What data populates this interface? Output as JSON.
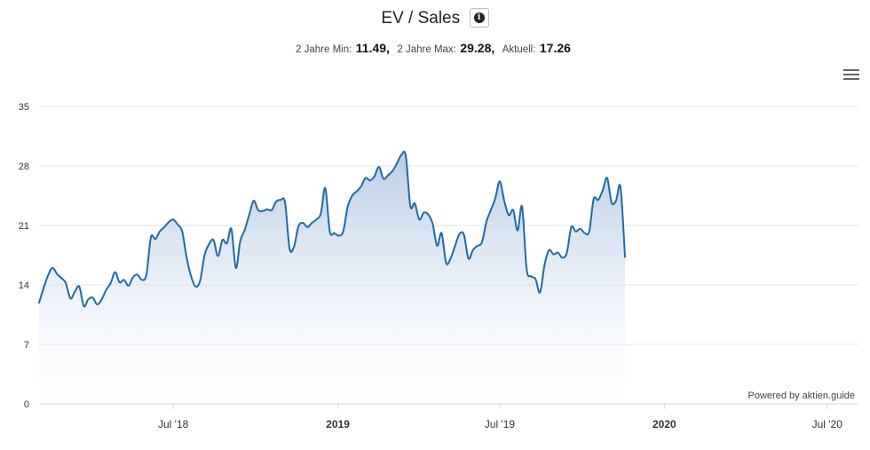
{
  "header": {
    "title": "EV / Sales",
    "info_icon": "info-circle-icon",
    "menu_icon": "hamburger-menu-icon"
  },
  "stats": {
    "min_label": "2 Jahre Min:",
    "min_value": "11.49,",
    "max_label": "2 Jahre Max:",
    "max_value": "29.28,",
    "current_label": "Aktuell:",
    "current_value": "17.26"
  },
  "credit": "Powered by aktien.guide",
  "colors": {
    "line": "#1f6aa5",
    "fill_top": "#b4c9e5",
    "grid": "#e3e3e3"
  },
  "chart_data": {
    "type": "area",
    "title": "EV / Sales",
    "ylim": [
      0,
      35
    ],
    "y_ticks": [
      "0",
      "7",
      "14",
      "21",
      "28",
      "35"
    ],
    "x_ticks": [
      {
        "label": "Jul '18",
        "date": "2018-07-01",
        "bold": false
      },
      {
        "label": "2019",
        "date": "2019-01-01",
        "bold": true
      },
      {
        "label": "Jul '19",
        "date": "2019-07-01",
        "bold": false
      },
      {
        "label": "2020",
        "date": "2020-01-01",
        "bold": true
      },
      {
        "label": "Jul '20",
        "date": "2020-07-01",
        "bold": false
      }
    ],
    "xlim": [
      "2018-02-01",
      "2020-08-05"
    ],
    "grid": true,
    "series": [
      {
        "points": [
          [
            "2018-02-01",
            11.9
          ],
          [
            "2018-02-06",
            13.6
          ],
          [
            "2018-02-11",
            15.1
          ],
          [
            "2018-02-16",
            16.0
          ],
          [
            "2018-02-21",
            15.3
          ],
          [
            "2018-02-26",
            14.8
          ],
          [
            "2018-03-03",
            14.2
          ],
          [
            "2018-03-08",
            12.4
          ],
          [
            "2018-03-13",
            13.2
          ],
          [
            "2018-03-18",
            13.8
          ],
          [
            "2018-03-23",
            11.5
          ],
          [
            "2018-03-28",
            12.3
          ],
          [
            "2018-04-02",
            12.5
          ],
          [
            "2018-04-07",
            11.7
          ],
          [
            "2018-04-12",
            12.3
          ],
          [
            "2018-04-17",
            13.4
          ],
          [
            "2018-04-22",
            14.2
          ],
          [
            "2018-04-27",
            15.5
          ],
          [
            "2018-05-02",
            14.3
          ],
          [
            "2018-05-07",
            14.6
          ],
          [
            "2018-05-12",
            13.9
          ],
          [
            "2018-05-17",
            14.9
          ],
          [
            "2018-05-22",
            15.2
          ],
          [
            "2018-05-27",
            14.6
          ],
          [
            "2018-06-01",
            15.2
          ],
          [
            "2018-06-06",
            19.6
          ],
          [
            "2018-06-11",
            19.4
          ],
          [
            "2018-06-16",
            20.3
          ],
          [
            "2018-06-21",
            20.8
          ],
          [
            "2018-06-26",
            21.4
          ],
          [
            "2018-07-01",
            21.7
          ],
          [
            "2018-07-06",
            21.1
          ],
          [
            "2018-07-11",
            20.3
          ],
          [
            "2018-07-16",
            17.2
          ],
          [
            "2018-07-21",
            15.0
          ],
          [
            "2018-07-26",
            13.8
          ],
          [
            "2018-07-31",
            14.5
          ],
          [
            "2018-08-05",
            17.5
          ],
          [
            "2018-08-10",
            18.8
          ],
          [
            "2018-08-15",
            19.3
          ],
          [
            "2018-08-20",
            17.4
          ],
          [
            "2018-08-25",
            19.3
          ],
          [
            "2018-08-30",
            18.9
          ],
          [
            "2018-09-04",
            20.6
          ],
          [
            "2018-09-09",
            16.0
          ],
          [
            "2018-09-14",
            19.2
          ],
          [
            "2018-09-19",
            20.5
          ],
          [
            "2018-09-24",
            22.3
          ],
          [
            "2018-09-29",
            23.9
          ],
          [
            "2018-10-04",
            22.8
          ],
          [
            "2018-10-09",
            22.7
          ],
          [
            "2018-10-14",
            22.9
          ],
          [
            "2018-10-19",
            22.8
          ],
          [
            "2018-10-24",
            23.8
          ],
          [
            "2018-10-29",
            24.0
          ],
          [
            "2018-11-03",
            23.7
          ],
          [
            "2018-11-08",
            18.3
          ],
          [
            "2018-11-13",
            18.5
          ],
          [
            "2018-11-18",
            20.9
          ],
          [
            "2018-11-23",
            21.3
          ],
          [
            "2018-11-28",
            20.8
          ],
          [
            "2018-12-03",
            21.3
          ],
          [
            "2018-12-08",
            21.7
          ],
          [
            "2018-12-13",
            22.4
          ],
          [
            "2018-12-18",
            25.4
          ],
          [
            "2018-12-23",
            20.3
          ],
          [
            "2018-12-28",
            20.1
          ],
          [
            "2019-01-02",
            19.8
          ],
          [
            "2019-01-07",
            20.3
          ],
          [
            "2019-01-12",
            23.2
          ],
          [
            "2019-01-17",
            24.5
          ],
          [
            "2019-01-22",
            25.0
          ],
          [
            "2019-01-27",
            25.6
          ],
          [
            "2019-02-01",
            26.6
          ],
          [
            "2019-02-06",
            26.3
          ],
          [
            "2019-02-11",
            26.8
          ],
          [
            "2019-02-16",
            27.9
          ],
          [
            "2019-02-21",
            26.5
          ],
          [
            "2019-02-26",
            26.9
          ],
          [
            "2019-03-03",
            27.4
          ],
          [
            "2019-03-08",
            28.3
          ],
          [
            "2019-03-13",
            29.3
          ],
          [
            "2019-03-18",
            29.2
          ],
          [
            "2019-03-23",
            23.3
          ],
          [
            "2019-03-28",
            23.6
          ],
          [
            "2019-04-02",
            21.7
          ],
          [
            "2019-04-07",
            22.5
          ],
          [
            "2019-04-12",
            22.3
          ],
          [
            "2019-04-17",
            21.2
          ],
          [
            "2019-04-22",
            18.6
          ],
          [
            "2019-04-27",
            20.1
          ],
          [
            "2019-05-02",
            16.6
          ],
          [
            "2019-05-07",
            17.1
          ],
          [
            "2019-05-12",
            18.6
          ],
          [
            "2019-05-17",
            20.0
          ],
          [
            "2019-05-22",
            19.9
          ],
          [
            "2019-05-27",
            17.1
          ],
          [
            "2019-06-01",
            18.1
          ],
          [
            "2019-06-06",
            18.6
          ],
          [
            "2019-06-11",
            19.0
          ],
          [
            "2019-06-16",
            21.4
          ],
          [
            "2019-06-21",
            22.8
          ],
          [
            "2019-06-26",
            24.2
          ],
          [
            "2019-07-01",
            26.2
          ],
          [
            "2019-07-06",
            23.9
          ],
          [
            "2019-07-11",
            22.2
          ],
          [
            "2019-07-16",
            22.8
          ],
          [
            "2019-07-21",
            20.4
          ],
          [
            "2019-07-26",
            23.2
          ],
          [
            "2019-07-31",
            15.9
          ],
          [
            "2019-08-05",
            15.0
          ],
          [
            "2019-08-10",
            14.7
          ],
          [
            "2019-08-15",
            13.1
          ],
          [
            "2019-08-20",
            16.3
          ],
          [
            "2019-08-25",
            18.1
          ],
          [
            "2019-08-30",
            17.6
          ],
          [
            "2019-09-04",
            17.8
          ],
          [
            "2019-09-09",
            17.2
          ],
          [
            "2019-09-14",
            17.8
          ],
          [
            "2019-09-19",
            20.8
          ],
          [
            "2019-09-24",
            20.3
          ],
          [
            "2019-09-29",
            20.6
          ],
          [
            "2019-10-04",
            20.1
          ],
          [
            "2019-10-09",
            20.3
          ],
          [
            "2019-10-14",
            24.1
          ],
          [
            "2019-10-19",
            24.0
          ],
          [
            "2019-10-24",
            25.1
          ],
          [
            "2019-10-29",
            26.6
          ],
          [
            "2019-11-03",
            23.7
          ],
          [
            "2019-11-08",
            23.9
          ],
          [
            "2019-11-13",
            25.5
          ],
          [
            "2019-11-18",
            17.3
          ]
        ]
      }
    ]
  }
}
